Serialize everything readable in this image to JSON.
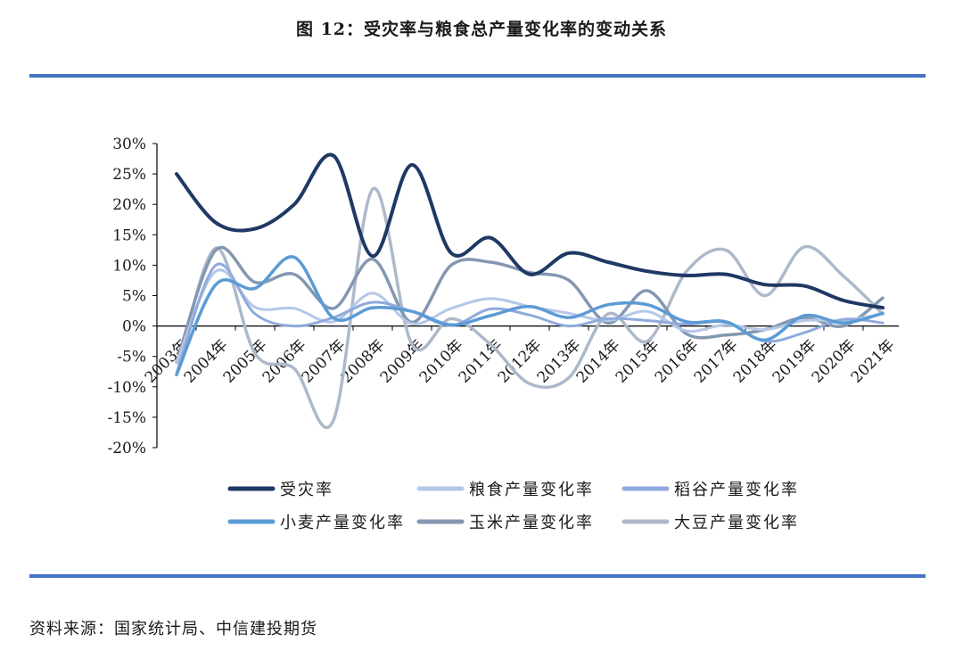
{
  "page": {
    "title": "图 12：受灾率与粮食总产量变化率的变动关系",
    "source": "资料来源：国家统计局、中信建投期货"
  },
  "chart_data": {
    "type": "line",
    "smooth": true,
    "ylim": [
      -0.2,
      0.3
    ],
    "yticks": [
      "30%",
      "25%",
      "20%",
      "15%",
      "10%",
      "5%",
      "0%",
      "-5%",
      "-10%",
      "-15%",
      "-20%"
    ],
    "ytick_values": [
      0.3,
      0.25,
      0.2,
      0.15,
      0.1,
      0.05,
      0.0,
      -0.05,
      -0.1,
      -0.15,
      -0.2
    ],
    "categories": [
      "2003年",
      "2004年",
      "2005年",
      "2006年",
      "2007年",
      "2008年",
      "2009年",
      "2010年",
      "2011年",
      "2012年",
      "2013年",
      "2014年",
      "2015年",
      "2016年",
      "2017年",
      "2018年",
      "2019年",
      "2020年",
      "2021年"
    ],
    "legend_placement": "bottom",
    "series": [
      {
        "name": "受灾率",
        "color": "#1f3864",
        "width": 4,
        "values": [
          0.25,
          0.17,
          0.16,
          0.2,
          0.28,
          0.115,
          0.265,
          0.12,
          0.145,
          0.085,
          0.12,
          0.105,
          0.09,
          0.083,
          0.085,
          0.068,
          0.066,
          0.042,
          0.03
        ]
      },
      {
        "name": "粮食产量变化率",
        "color": "#b4c7e7",
        "width": 3,
        "values": [
          -0.06,
          0.09,
          0.031,
          0.029,
          0.007,
          0.054,
          0.004,
          0.029,
          0.045,
          0.032,
          0.021,
          0.009,
          0.024,
          -0.008,
          0.002,
          -0.006,
          0.009,
          0.009,
          0.02
        ]
      },
      {
        "name": "稻谷产量变化率",
        "color": "#8faadc",
        "width": 3,
        "values": [
          -0.08,
          0.1,
          0.02,
          0.0,
          0.014,
          0.039,
          0.024,
          0.001,
          0.028,
          0.018,
          0.0,
          0.012,
          0.009,
          0.003,
          0.006,
          -0.025,
          -0.011,
          0.011,
          0.005
        ]
      },
      {
        "name": "小麦产量变化率",
        "color": "#5b9bd5",
        "width": 3.5,
        "values": [
          -0.08,
          0.068,
          0.062,
          0.113,
          0.013,
          0.03,
          0.024,
          0.002,
          0.017,
          0.032,
          0.014,
          0.035,
          0.035,
          0.007,
          0.007,
          -0.023,
          0.017,
          0.005,
          0.021
        ]
      },
      {
        "name": "玉米产量变化率",
        "color": "#8497b0",
        "width": 3.5,
        "values": [
          -0.06,
          0.125,
          0.072,
          0.085,
          0.029,
          0.11,
          0.006,
          0.1,
          0.105,
          0.088,
          0.075,
          0.005,
          0.058,
          -0.013,
          -0.015,
          -0.006,
          0.014,
          0.0,
          0.046
        ]
      },
      {
        "name": "大豆产量变化率",
        "color": "#adb9ca",
        "width": 3.5,
        "values": [
          -0.08,
          0.128,
          -0.045,
          -0.07,
          -0.155,
          0.225,
          -0.03,
          0.012,
          -0.03,
          -0.095,
          -0.085,
          0.02,
          -0.025,
          0.09,
          0.125,
          0.05,
          0.13,
          0.082,
          0.02
        ]
      }
    ]
  }
}
